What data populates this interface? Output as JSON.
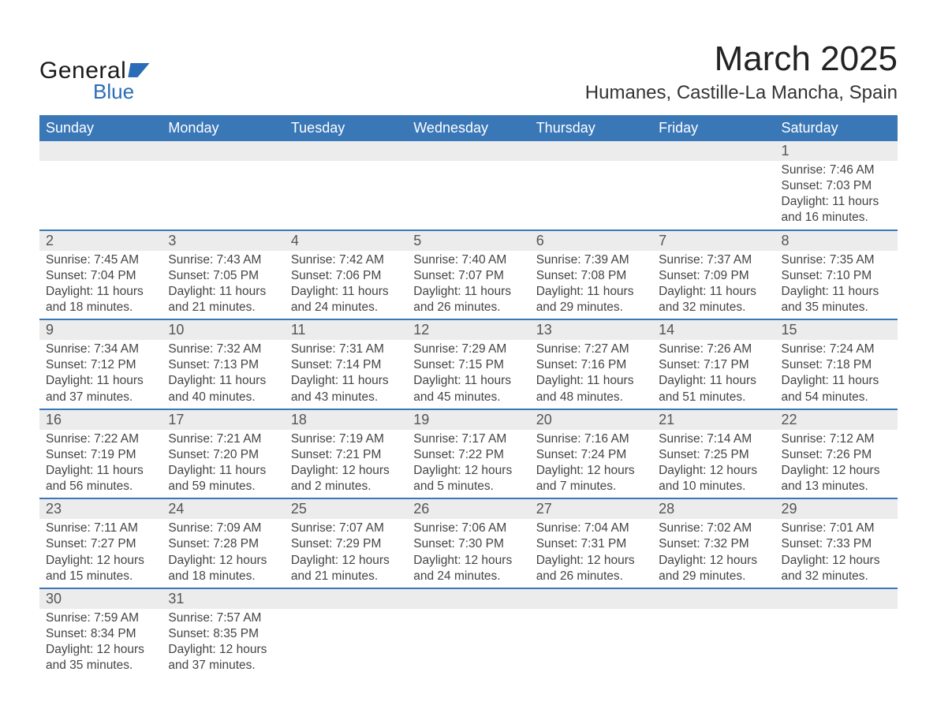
{
  "logo": {
    "general": "General",
    "blue": "Blue"
  },
  "title": "March 2025",
  "location": "Humanes, Castille-La Mancha, Spain",
  "colors": {
    "header_bg": "#3a77b7",
    "header_text": "#ffffff",
    "row_separator": "#3a77b7",
    "daynum_bg": "#ececec",
    "body_text": "#444444",
    "logo_blue": "#2a6db6"
  },
  "day_headers": [
    "Sunday",
    "Monday",
    "Tuesday",
    "Wednesday",
    "Thursday",
    "Friday",
    "Saturday"
  ],
  "weeks": [
    [
      {
        "empty": true
      },
      {
        "empty": true
      },
      {
        "empty": true
      },
      {
        "empty": true
      },
      {
        "empty": true
      },
      {
        "empty": true
      },
      {
        "n": "1",
        "sr": "Sunrise: 7:46 AM",
        "ss": "Sunset: 7:03 PM",
        "d1": "Daylight: 11 hours",
        "d2": "and 16 minutes."
      }
    ],
    [
      {
        "n": "2",
        "sr": "Sunrise: 7:45 AM",
        "ss": "Sunset: 7:04 PM",
        "d1": "Daylight: 11 hours",
        "d2": "and 18 minutes."
      },
      {
        "n": "3",
        "sr": "Sunrise: 7:43 AM",
        "ss": "Sunset: 7:05 PM",
        "d1": "Daylight: 11 hours",
        "d2": "and 21 minutes."
      },
      {
        "n": "4",
        "sr": "Sunrise: 7:42 AM",
        "ss": "Sunset: 7:06 PM",
        "d1": "Daylight: 11 hours",
        "d2": "and 24 minutes."
      },
      {
        "n": "5",
        "sr": "Sunrise: 7:40 AM",
        "ss": "Sunset: 7:07 PM",
        "d1": "Daylight: 11 hours",
        "d2": "and 26 minutes."
      },
      {
        "n": "6",
        "sr": "Sunrise: 7:39 AM",
        "ss": "Sunset: 7:08 PM",
        "d1": "Daylight: 11 hours",
        "d2": "and 29 minutes."
      },
      {
        "n": "7",
        "sr": "Sunrise: 7:37 AM",
        "ss": "Sunset: 7:09 PM",
        "d1": "Daylight: 11 hours",
        "d2": "and 32 minutes."
      },
      {
        "n": "8",
        "sr": "Sunrise: 7:35 AM",
        "ss": "Sunset: 7:10 PM",
        "d1": "Daylight: 11 hours",
        "d2": "and 35 minutes."
      }
    ],
    [
      {
        "n": "9",
        "sr": "Sunrise: 7:34 AM",
        "ss": "Sunset: 7:12 PM",
        "d1": "Daylight: 11 hours",
        "d2": "and 37 minutes."
      },
      {
        "n": "10",
        "sr": "Sunrise: 7:32 AM",
        "ss": "Sunset: 7:13 PM",
        "d1": "Daylight: 11 hours",
        "d2": "and 40 minutes."
      },
      {
        "n": "11",
        "sr": "Sunrise: 7:31 AM",
        "ss": "Sunset: 7:14 PM",
        "d1": "Daylight: 11 hours",
        "d2": "and 43 minutes."
      },
      {
        "n": "12",
        "sr": "Sunrise: 7:29 AM",
        "ss": "Sunset: 7:15 PM",
        "d1": "Daylight: 11 hours",
        "d2": "and 45 minutes."
      },
      {
        "n": "13",
        "sr": "Sunrise: 7:27 AM",
        "ss": "Sunset: 7:16 PM",
        "d1": "Daylight: 11 hours",
        "d2": "and 48 minutes."
      },
      {
        "n": "14",
        "sr": "Sunrise: 7:26 AM",
        "ss": "Sunset: 7:17 PM",
        "d1": "Daylight: 11 hours",
        "d2": "and 51 minutes."
      },
      {
        "n": "15",
        "sr": "Sunrise: 7:24 AM",
        "ss": "Sunset: 7:18 PM",
        "d1": "Daylight: 11 hours",
        "d2": "and 54 minutes."
      }
    ],
    [
      {
        "n": "16",
        "sr": "Sunrise: 7:22 AM",
        "ss": "Sunset: 7:19 PM",
        "d1": "Daylight: 11 hours",
        "d2": "and 56 minutes."
      },
      {
        "n": "17",
        "sr": "Sunrise: 7:21 AM",
        "ss": "Sunset: 7:20 PM",
        "d1": "Daylight: 11 hours",
        "d2": "and 59 minutes."
      },
      {
        "n": "18",
        "sr": "Sunrise: 7:19 AM",
        "ss": "Sunset: 7:21 PM",
        "d1": "Daylight: 12 hours",
        "d2": "and 2 minutes."
      },
      {
        "n": "19",
        "sr": "Sunrise: 7:17 AM",
        "ss": "Sunset: 7:22 PM",
        "d1": "Daylight: 12 hours",
        "d2": "and 5 minutes."
      },
      {
        "n": "20",
        "sr": "Sunrise: 7:16 AM",
        "ss": "Sunset: 7:24 PM",
        "d1": "Daylight: 12 hours",
        "d2": "and 7 minutes."
      },
      {
        "n": "21",
        "sr": "Sunrise: 7:14 AM",
        "ss": "Sunset: 7:25 PM",
        "d1": "Daylight: 12 hours",
        "d2": "and 10 minutes."
      },
      {
        "n": "22",
        "sr": "Sunrise: 7:12 AM",
        "ss": "Sunset: 7:26 PM",
        "d1": "Daylight: 12 hours",
        "d2": "and 13 minutes."
      }
    ],
    [
      {
        "n": "23",
        "sr": "Sunrise: 7:11 AM",
        "ss": "Sunset: 7:27 PM",
        "d1": "Daylight: 12 hours",
        "d2": "and 15 minutes."
      },
      {
        "n": "24",
        "sr": "Sunrise: 7:09 AM",
        "ss": "Sunset: 7:28 PM",
        "d1": "Daylight: 12 hours",
        "d2": "and 18 minutes."
      },
      {
        "n": "25",
        "sr": "Sunrise: 7:07 AM",
        "ss": "Sunset: 7:29 PM",
        "d1": "Daylight: 12 hours",
        "d2": "and 21 minutes."
      },
      {
        "n": "26",
        "sr": "Sunrise: 7:06 AM",
        "ss": "Sunset: 7:30 PM",
        "d1": "Daylight: 12 hours",
        "d2": "and 24 minutes."
      },
      {
        "n": "27",
        "sr": "Sunrise: 7:04 AM",
        "ss": "Sunset: 7:31 PM",
        "d1": "Daylight: 12 hours",
        "d2": "and 26 minutes."
      },
      {
        "n": "28",
        "sr": "Sunrise: 7:02 AM",
        "ss": "Sunset: 7:32 PM",
        "d1": "Daylight: 12 hours",
        "d2": "and 29 minutes."
      },
      {
        "n": "29",
        "sr": "Sunrise: 7:01 AM",
        "ss": "Sunset: 7:33 PM",
        "d1": "Daylight: 12 hours",
        "d2": "and 32 minutes."
      }
    ],
    [
      {
        "n": "30",
        "sr": "Sunrise: 7:59 AM",
        "ss": "Sunset: 8:34 PM",
        "d1": "Daylight: 12 hours",
        "d2": "and 35 minutes."
      },
      {
        "n": "31",
        "sr": "Sunrise: 7:57 AM",
        "ss": "Sunset: 8:35 PM",
        "d1": "Daylight: 12 hours",
        "d2": "and 37 minutes."
      },
      {
        "empty": true
      },
      {
        "empty": true
      },
      {
        "empty": true
      },
      {
        "empty": true
      },
      {
        "empty": true
      }
    ]
  ]
}
